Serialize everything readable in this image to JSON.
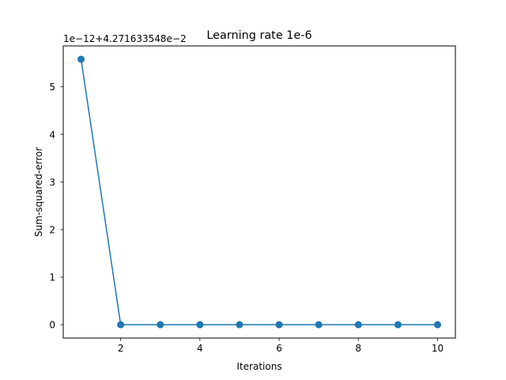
{
  "chart_data": {
    "type": "line",
    "title": "Learning rate 1e-6",
    "xlabel": "Iterations",
    "ylabel": "Sum-squared-error",
    "offset_label": "1e−12+4.271633548e−2",
    "x": [
      1,
      2,
      3,
      4,
      5,
      6,
      7,
      8,
      9,
      10
    ],
    "series": [
      {
        "values": [
          5.58,
          0,
          0,
          0,
          0,
          0,
          0,
          0,
          0,
          0
        ]
      }
    ],
    "xlim": [
      0.55,
      10.45
    ],
    "ylim": [
      -0.28,
      5.86
    ],
    "x_ticks": [
      2,
      4,
      6,
      8,
      10
    ],
    "x_tick_labels": [
      "2",
      "4",
      "6",
      "8",
      "10"
    ],
    "y_ticks": [
      0,
      1,
      2,
      3,
      4,
      5
    ],
    "y_tick_labels": [
      "0",
      "1",
      "2",
      "3",
      "4",
      "5"
    ],
    "grid": false,
    "markers": "circle",
    "color": "#1f77b4"
  }
}
